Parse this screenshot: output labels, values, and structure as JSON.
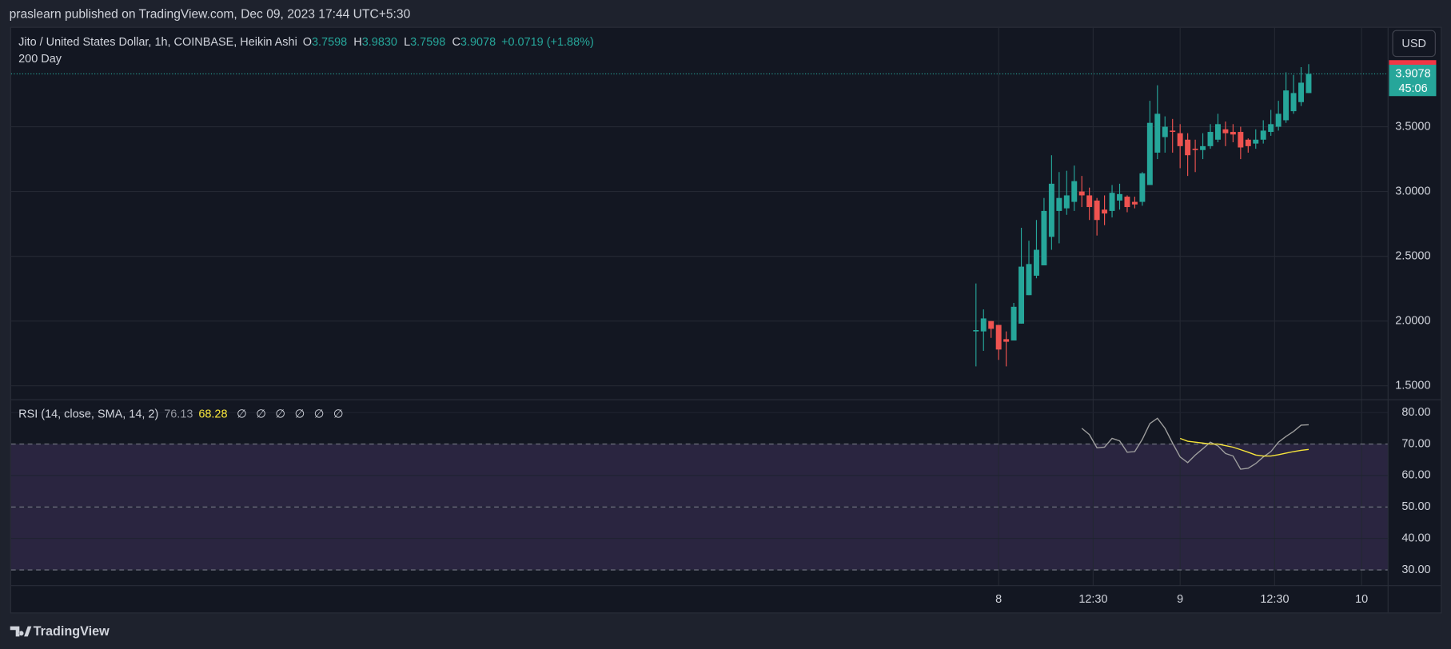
{
  "header": "praslearn published on TradingView.com, Dec 09, 2023 17:44 UTC+5:30",
  "footer": "TradingView",
  "chart_data": [
    {
      "type": "candlestick",
      "title": "Jito / United States Dollar, 1h, COINBASE, Heikin Ashi",
      "legend": [
        {
          "key": "O",
          "value": "3.7598"
        },
        {
          "key": "H",
          "value": "3.9830"
        },
        {
          "key": "L",
          "value": "3.7598"
        },
        {
          "key": "C",
          "value": "3.9078"
        }
      ],
      "change": "+0.0719 (+1.88%)",
      "indicator": "200 Day",
      "currency": "USD",
      "countdown": "45:06",
      "up_color": "#26a69a",
      "down_color": "#ef5350",
      "categories": [
        null,
        null,
        null,
        null,
        null,
        null,
        null,
        null,
        null,
        null,
        null,
        null,
        null,
        null,
        null,
        null,
        null,
        null,
        null,
        null,
        null,
        null,
        null,
        null,
        null,
        null,
        null,
        null,
        null,
        null,
        null,
        null,
        null,
        null,
        null,
        null,
        null,
        null,
        null,
        null,
        null,
        null,
        null,
        null,
        null
      ],
      "ohlc": [
        [
          1.92,
          2.29,
          1.65,
          1.93
        ],
        [
          1.92,
          2.09,
          1.77,
          2.02
        ],
        [
          2.0,
          2.0,
          1.87,
          1.94
        ],
        [
          1.97,
          1.97,
          1.7,
          1.78
        ],
        [
          1.86,
          1.92,
          1.65,
          1.84
        ],
        [
          1.85,
          2.14,
          1.85,
          2.11
        ],
        [
          1.98,
          2.72,
          1.98,
          2.42
        ],
        [
          2.2,
          2.62,
          2.2,
          2.44
        ],
        [
          2.35,
          2.78,
          2.33,
          2.55
        ],
        [
          2.43,
          2.95,
          2.43,
          2.85
        ],
        [
          2.65,
          3.28,
          2.55,
          3.06
        ],
        [
          2.85,
          3.15,
          2.6,
          2.95
        ],
        [
          2.87,
          3.16,
          2.82,
          2.97
        ],
        [
          2.92,
          3.2,
          2.85,
          3.08
        ],
        [
          3.0,
          3.12,
          2.88,
          2.97
        ],
        [
          2.97,
          3.03,
          2.78,
          2.88
        ],
        [
          2.93,
          2.95,
          2.66,
          2.78
        ],
        [
          2.86,
          2.97,
          2.74,
          2.83
        ],
        [
          2.85,
          3.05,
          2.8,
          2.99
        ],
        [
          2.93,
          3.06,
          2.86,
          2.98
        ],
        [
          2.96,
          2.97,
          2.84,
          2.88
        ],
        [
          2.92,
          2.96,
          2.87,
          2.9
        ],
        [
          2.92,
          3.15,
          2.89,
          3.14
        ],
        [
          3.05,
          3.7,
          3.05,
          3.53
        ],
        [
          3.3,
          3.82,
          3.25,
          3.6
        ],
        [
          3.42,
          3.58,
          3.3,
          3.5
        ],
        [
          3.47,
          3.56,
          3.3,
          3.46
        ],
        [
          3.45,
          3.52,
          3.18,
          3.35
        ],
        [
          3.4,
          3.45,
          3.12,
          3.28
        ],
        [
          3.33,
          3.4,
          3.15,
          3.32
        ],
        [
          3.32,
          3.45,
          3.25,
          3.35
        ],
        [
          3.35,
          3.52,
          3.33,
          3.46
        ],
        [
          3.4,
          3.6,
          3.38,
          3.52
        ],
        [
          3.48,
          3.54,
          3.35,
          3.45
        ],
        [
          3.46,
          3.52,
          3.38,
          3.44
        ],
        [
          3.46,
          3.5,
          3.25,
          3.34
        ],
        [
          3.4,
          3.41,
          3.3,
          3.35
        ],
        [
          3.37,
          3.48,
          3.33,
          3.4
        ],
        [
          3.4,
          3.55,
          3.37,
          3.47
        ],
        [
          3.46,
          3.63,
          3.43,
          3.52
        ],
        [
          3.5,
          3.7,
          3.47,
          3.6
        ],
        [
          3.55,
          3.92,
          3.53,
          3.78
        ],
        [
          3.62,
          3.9,
          3.6,
          3.76
        ],
        [
          3.69,
          3.96,
          3.66,
          3.84
        ],
        [
          3.7598,
          3.983,
          3.7598,
          3.9078
        ]
      ],
      "xlim": [
        -127.6,
        54.5
      ],
      "xticks": [
        {
          "value": 3,
          "label": "8"
        },
        {
          "value": 15.5,
          "label": "12:30"
        },
        {
          "value": 27,
          "label": "9"
        },
        {
          "value": 39.5,
          "label": "12:30"
        },
        {
          "value": 51,
          "label": "10"
        }
      ],
      "ylim": [
        1.393,
        4.264
      ],
      "yticks": [
        {
          "value": 1.5,
          "label": "1.5000"
        },
        {
          "value": 2,
          "label": "2.0000"
        },
        {
          "value": 2.5,
          "label": "2.5000"
        },
        {
          "value": 3,
          "label": "3.0000"
        },
        {
          "value": 3.5,
          "label": "3.5000"
        }
      ],
      "grid": true
    },
    {
      "type": "line",
      "title": "RSI (14, close, SMA, 14, 2)",
      "markers": [
        "∅",
        "∅",
        "∅",
        "∅",
        "∅",
        "∅"
      ],
      "series": [
        {
          "color": "#9e9e9e",
          "values": [
            null,
            null,
            null,
            null,
            null,
            null,
            null,
            null,
            null,
            null,
            null,
            null,
            null,
            null,
            75,
            73,
            68.8,
            69,
            71.8,
            71,
            67.4,
            67.6,
            71.5,
            76.5,
            78.2,
            75,
            70.3,
            65.9,
            64.1,
            66.5,
            68.5,
            70.6,
            69.4,
            67,
            66.2,
            62,
            62.3,
            63.8,
            65.9,
            67.6,
            70.6,
            72.4,
            74,
            76,
            76.13
          ]
        },
        {
          "color": "#f7e53b",
          "values": [
            null,
            null,
            null,
            null,
            null,
            null,
            null,
            null,
            null,
            null,
            null,
            null,
            null,
            null,
            null,
            null,
            null,
            null,
            null,
            null,
            null,
            null,
            null,
            null,
            null,
            null,
            null,
            71.8,
            70.9,
            70.6,
            70.3,
            70,
            70,
            69.5,
            69,
            68.2,
            67.4,
            66.5,
            66.2,
            66.2,
            66.6,
            67.1,
            67.6,
            68,
            68.28
          ]
        }
      ],
      "band": [
        30,
        70
      ],
      "band_color": "#2a2540",
      "levels": [
        70,
        50,
        30
      ],
      "ylim": [
        25.0,
        84.1
      ],
      "yticks": [
        {
          "value": 30,
          "label": "30.00"
        },
        {
          "value": 40,
          "label": "40.00"
        },
        {
          "value": 50,
          "label": "50.00"
        },
        {
          "value": 60,
          "label": "60.00"
        },
        {
          "value": 70,
          "label": "70.00"
        },
        {
          "value": 80,
          "label": "80.00"
        }
      ],
      "grid": true
    }
  ]
}
